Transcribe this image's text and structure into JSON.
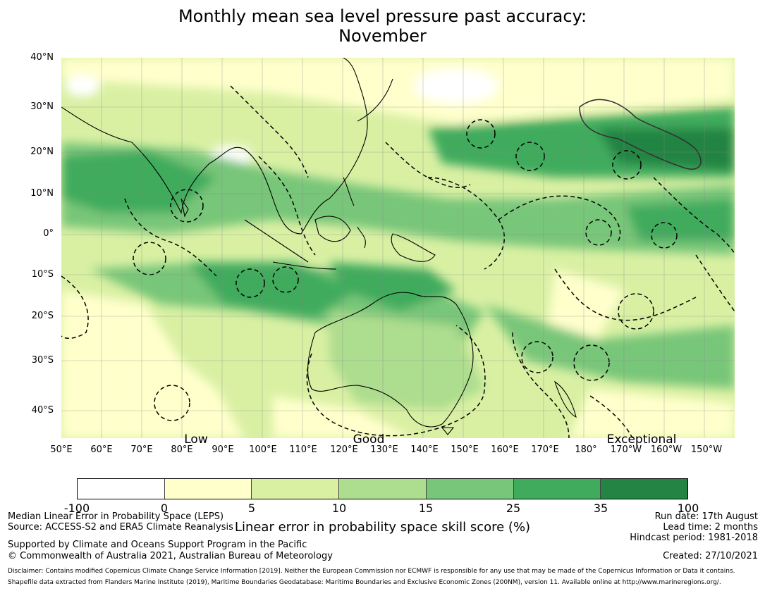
{
  "title": {
    "line1": "Monthly mean sea level pressure past accuracy:",
    "line2": "November"
  },
  "map": {
    "lat_labels": [
      "40°N",
      "30°N",
      "20°N",
      "10°N",
      "0°",
      "10°S",
      "20°S",
      "30°S",
      "40°S"
    ],
    "lon_labels": [
      "50°E",
      "60°E",
      "70°E",
      "80°E",
      "90°E",
      "100°E",
      "110°E",
      "120°E",
      "130°E",
      "140°E",
      "150°E",
      "160°E",
      "170°E",
      "180°",
      "170°W",
      "160°W",
      "150°W"
    ],
    "category_labels": [
      "Low",
      "Good",
      "Exceptional"
    ],
    "land_outline_color": "#000000",
    "eez_boundary_style": "dashed"
  },
  "colorbar": {
    "ticks": [
      "-100",
      "0",
      "5",
      "10",
      "15",
      "25",
      "35",
      "100"
    ],
    "colors": [
      "#ffffff",
      "#ffffcc",
      "#d9f0a3",
      "#addd8e",
      "#78c679",
      "#41ab5d",
      "#238443"
    ],
    "label": "Linear error in probability space skill score (%)"
  },
  "footer": {
    "left1": "Median Linear Error in Probability Space (LEPS)",
    "left2": "Source: ACCESS-S2 and ERA5 Climate Reanalysis",
    "left3": "Supported by Climate and Oceans Support Program in the Pacific",
    "left4": "© Commonwealth of Australia 2021, Australian Bureau of Meteorology",
    "run_date": "Run date: 17th August",
    "lead_time": "Lead time: 2 months",
    "hindcast": "Hindcast period: 1981-2018",
    "created": "Created: 27/10/2021",
    "disclaimer": "Disclaimer: Contains modified Copernicus Climate Change Service Information [2019]. Neither the European Commission nor ECMWF is responsible for any use that may be made of the Copernicus Information or Data it contains.",
    "shapefile": "Shapefile data extracted from Flanders Marine Institute (2019), Maritime Boundaries Geodatabase: Maritime Boundaries and Exclusive Economic Zones (200NM), version 11. Available online at http://www.marineregions.org/."
  }
}
